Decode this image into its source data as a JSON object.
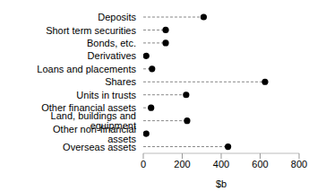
{
  "chart_data": {
    "type": "dot",
    "orientation": "horizontal",
    "xlabel": "$b",
    "categories": [
      "Deposits",
      "Short term securities",
      "Bonds, etc.",
      "Derivatives",
      "Loans and placements",
      "Shares",
      "Units in trusts",
      "Other financial assets",
      "Land, buildings and equipment",
      "Other non-financial assets",
      "Overseas assets"
    ],
    "values": [
      310,
      115,
      115,
      15,
      45,
      625,
      220,
      40,
      225,
      15,
      435
    ],
    "color": "#000000",
    "marker": "circle",
    "line_style": "dashed",
    "xlim": [
      0,
      800
    ],
    "xticks": [
      0,
      200,
      400,
      600,
      800
    ]
  }
}
